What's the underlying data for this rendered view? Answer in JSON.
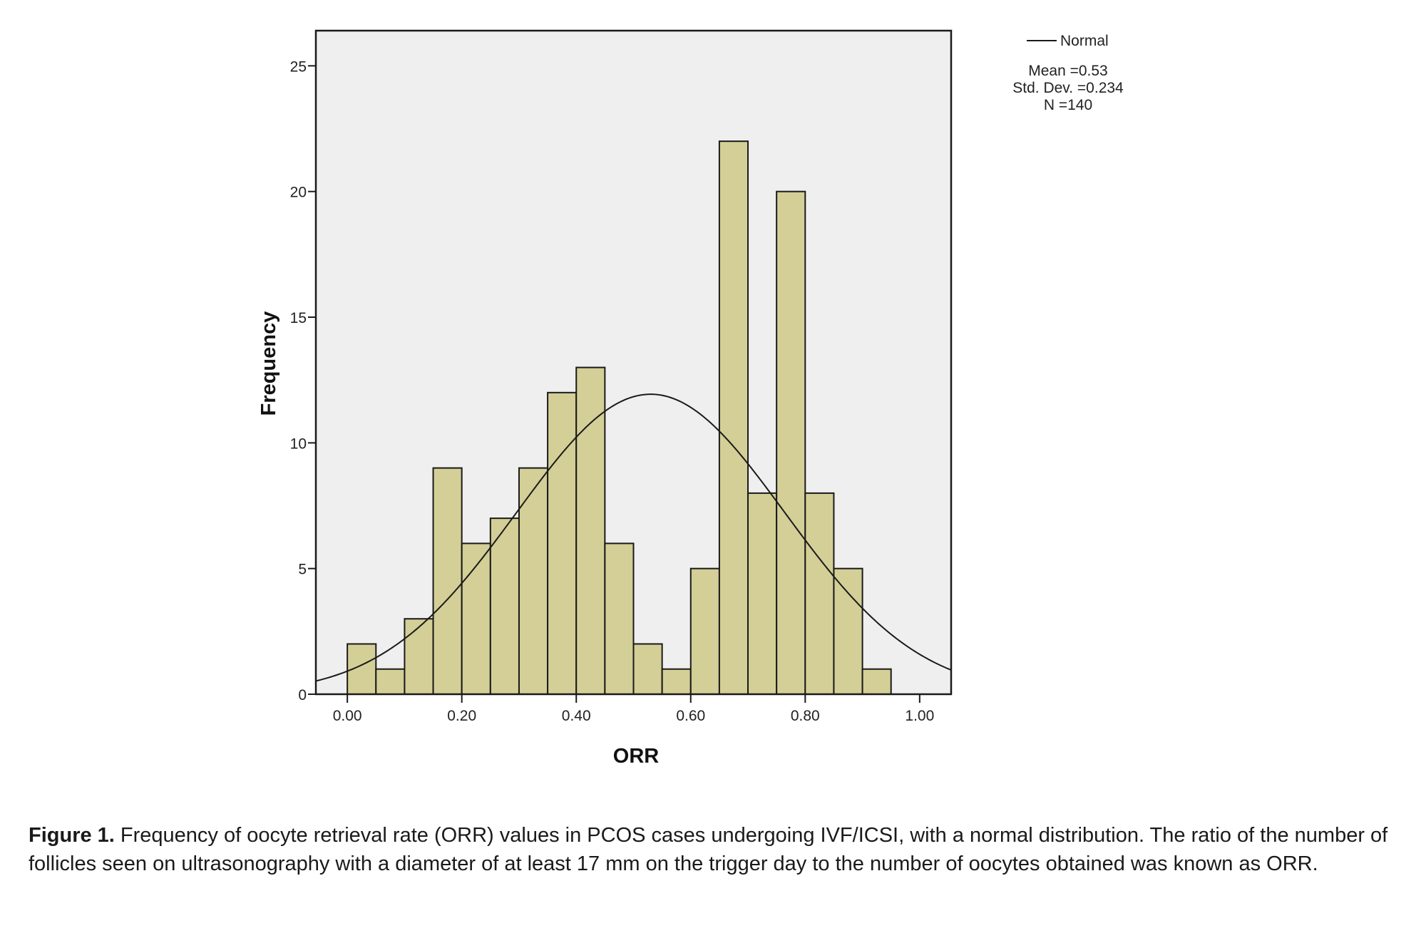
{
  "chart_data": {
    "type": "bar",
    "subtype": "histogram",
    "title": "",
    "xlabel": "ORR",
    "ylabel": "Frequency",
    "bin_width": 0.05,
    "bin_starts": [
      0.0,
      0.05,
      0.1,
      0.15,
      0.2,
      0.25,
      0.3,
      0.35,
      0.4,
      0.45,
      0.5,
      0.55,
      0.6,
      0.65,
      0.7,
      0.75,
      0.8,
      0.85,
      0.9
    ],
    "values": [
      2,
      1,
      3,
      9,
      6,
      7,
      9,
      12,
      13,
      6,
      2,
      1,
      5,
      22,
      8,
      20,
      8,
      5,
      1
    ],
    "xlim": [
      -0.055,
      1.055
    ],
    "ylim": [
      0,
      26.4
    ],
    "x_ticks": [
      0.0,
      0.2,
      0.4,
      0.6,
      0.8,
      1.0
    ],
    "x_tick_labels": [
      "0.00",
      "0.20",
      "0.40",
      "0.60",
      "0.80",
      "1.00"
    ],
    "y_ticks": [
      0,
      5,
      10,
      15,
      20,
      25
    ],
    "y_tick_labels": [
      "0",
      "5",
      "10",
      "15",
      "20",
      "25"
    ],
    "grid": false,
    "overlay": {
      "type": "normal_curve",
      "mean": 0.53,
      "std": 0.234,
      "n": 140
    },
    "legend": {
      "placement": "top-right-outside",
      "entries": [
        "Normal"
      ],
      "stats": [
        "Mean =0.53",
        "Std. Dev. =0.234",
        "N =140"
      ]
    },
    "colors": {
      "bar_fill": "#d3cf96",
      "bar_stroke": "#1a1a1a",
      "plot_bg": "#efefef",
      "curve": "#1a1a1a"
    }
  },
  "caption": {
    "label": "Figure 1.",
    "text": " Frequency of oocyte retrieval rate (ORR) values in PCOS cases undergoing IVF/ICSI, with a normal distribution. The ratio of the number of follicles seen on ultrasonography with a diameter of at least 17 mm on the trigger day to the number of oocytes obtained was known as ORR."
  }
}
